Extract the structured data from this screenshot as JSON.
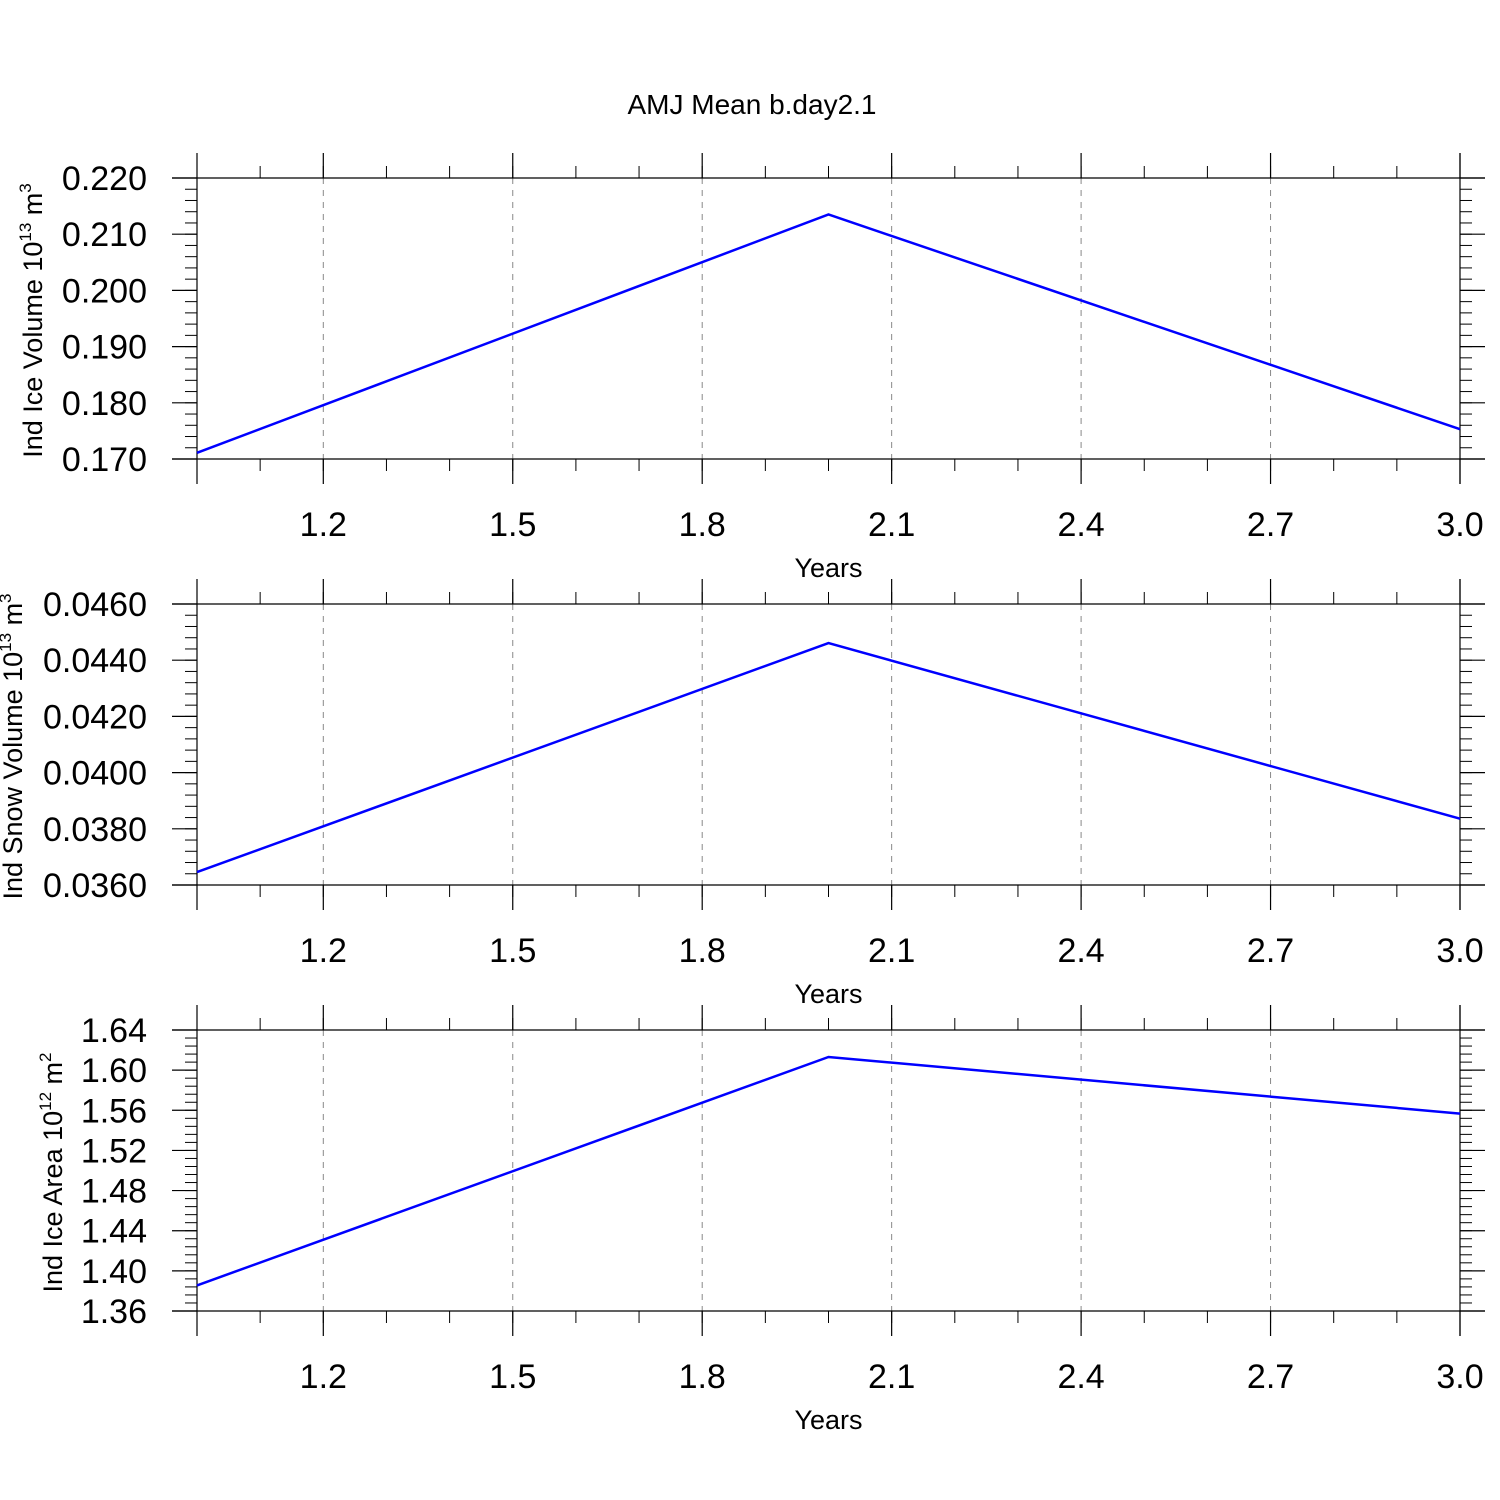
{
  "figure": {
    "title": "AMJ Mean b.day2.1"
  },
  "colors": {
    "line": "#0000ff",
    "frame": "#000000",
    "grid": "#888888",
    "background": "#ffffff"
  },
  "chart_data": [
    {
      "type": "line",
      "title": "AMJ Mean b.day2.1",
      "ylabel": "Ind Ice Volume 10",
      "ylabel_exp": "13",
      "ylabel_unit": " m",
      "ylabel_unit_exp": "3",
      "xlabel": "Years",
      "xlim": [
        1.0,
        3.0
      ],
      "ylim": [
        0.17,
        0.22
      ],
      "x_major_ticks": [
        1.2,
        1.5,
        1.8,
        2.1,
        2.4,
        2.7,
        3.0
      ],
      "x_tick_labels": [
        "1.2",
        "1.5",
        "1.8",
        "2.1",
        "2.4",
        "2.7",
        "3.0"
      ],
      "x_minor_step": 0.1,
      "y_major_ticks": [
        0.17,
        0.18,
        0.19,
        0.2,
        0.21,
        0.22
      ],
      "y_tick_labels": [
        "0.170",
        "0.180",
        "0.190",
        "0.200",
        "0.210",
        "0.220"
      ],
      "y_minor_step": 0.002,
      "grid": "vertical-dashed",
      "series": [
        {
          "x": [
            1.0,
            2.0,
            3.0
          ],
          "y": [
            0.1711,
            0.2135,
            0.1753
          ]
        }
      ]
    },
    {
      "type": "line",
      "ylabel": "Ind Snow Volume 10",
      "ylabel_exp": "13",
      "ylabel_unit": " m",
      "ylabel_unit_exp": "3",
      "xlabel": "Years",
      "xlim": [
        1.0,
        3.0
      ],
      "ylim": [
        0.036,
        0.046
      ],
      "x_major_ticks": [
        1.2,
        1.5,
        1.8,
        2.1,
        2.4,
        2.7,
        3.0
      ],
      "x_tick_labels": [
        "1.2",
        "1.5",
        "1.8",
        "2.1",
        "2.4",
        "2.7",
        "3.0"
      ],
      "x_minor_step": 0.1,
      "y_major_ticks": [
        0.036,
        0.038,
        0.04,
        0.042,
        0.044,
        0.046
      ],
      "y_tick_labels": [
        "0.0360",
        "0.0380",
        "0.0400",
        "0.0420",
        "0.0440",
        "0.0460"
      ],
      "y_minor_step": 0.0004,
      "grid": "vertical-dashed",
      "series": [
        {
          "x": [
            1.0,
            2.0,
            3.0
          ],
          "y": [
            0.03646,
            0.04461,
            0.03836
          ]
        }
      ]
    },
    {
      "type": "line",
      "ylabel": "Ind Ice Area 10",
      "ylabel_exp": "12",
      "ylabel_unit": " m",
      "ylabel_unit_exp": "2",
      "xlabel": "Years",
      "xlim": [
        1.0,
        3.0
      ],
      "ylim": [
        1.36,
        1.64
      ],
      "x_major_ticks": [
        1.2,
        1.5,
        1.8,
        2.1,
        2.4,
        2.7,
        3.0
      ],
      "x_tick_labels": [
        "1.2",
        "1.5",
        "1.8",
        "2.1",
        "2.4",
        "2.7",
        "3.0"
      ],
      "x_minor_step": 0.1,
      "y_major_ticks": [
        1.36,
        1.4,
        1.44,
        1.48,
        1.52,
        1.56,
        1.6,
        1.64
      ],
      "y_tick_labels": [
        "1.36",
        "1.40",
        "1.44",
        "1.48",
        "1.52",
        "1.56",
        "1.60",
        "1.64"
      ],
      "y_minor_step": 0.008,
      "grid": "vertical-dashed",
      "series": [
        {
          "x": [
            1.0,
            2.0,
            3.0
          ],
          "y": [
            1.3855,
            1.6131,
            1.5567
          ]
        }
      ]
    }
  ]
}
